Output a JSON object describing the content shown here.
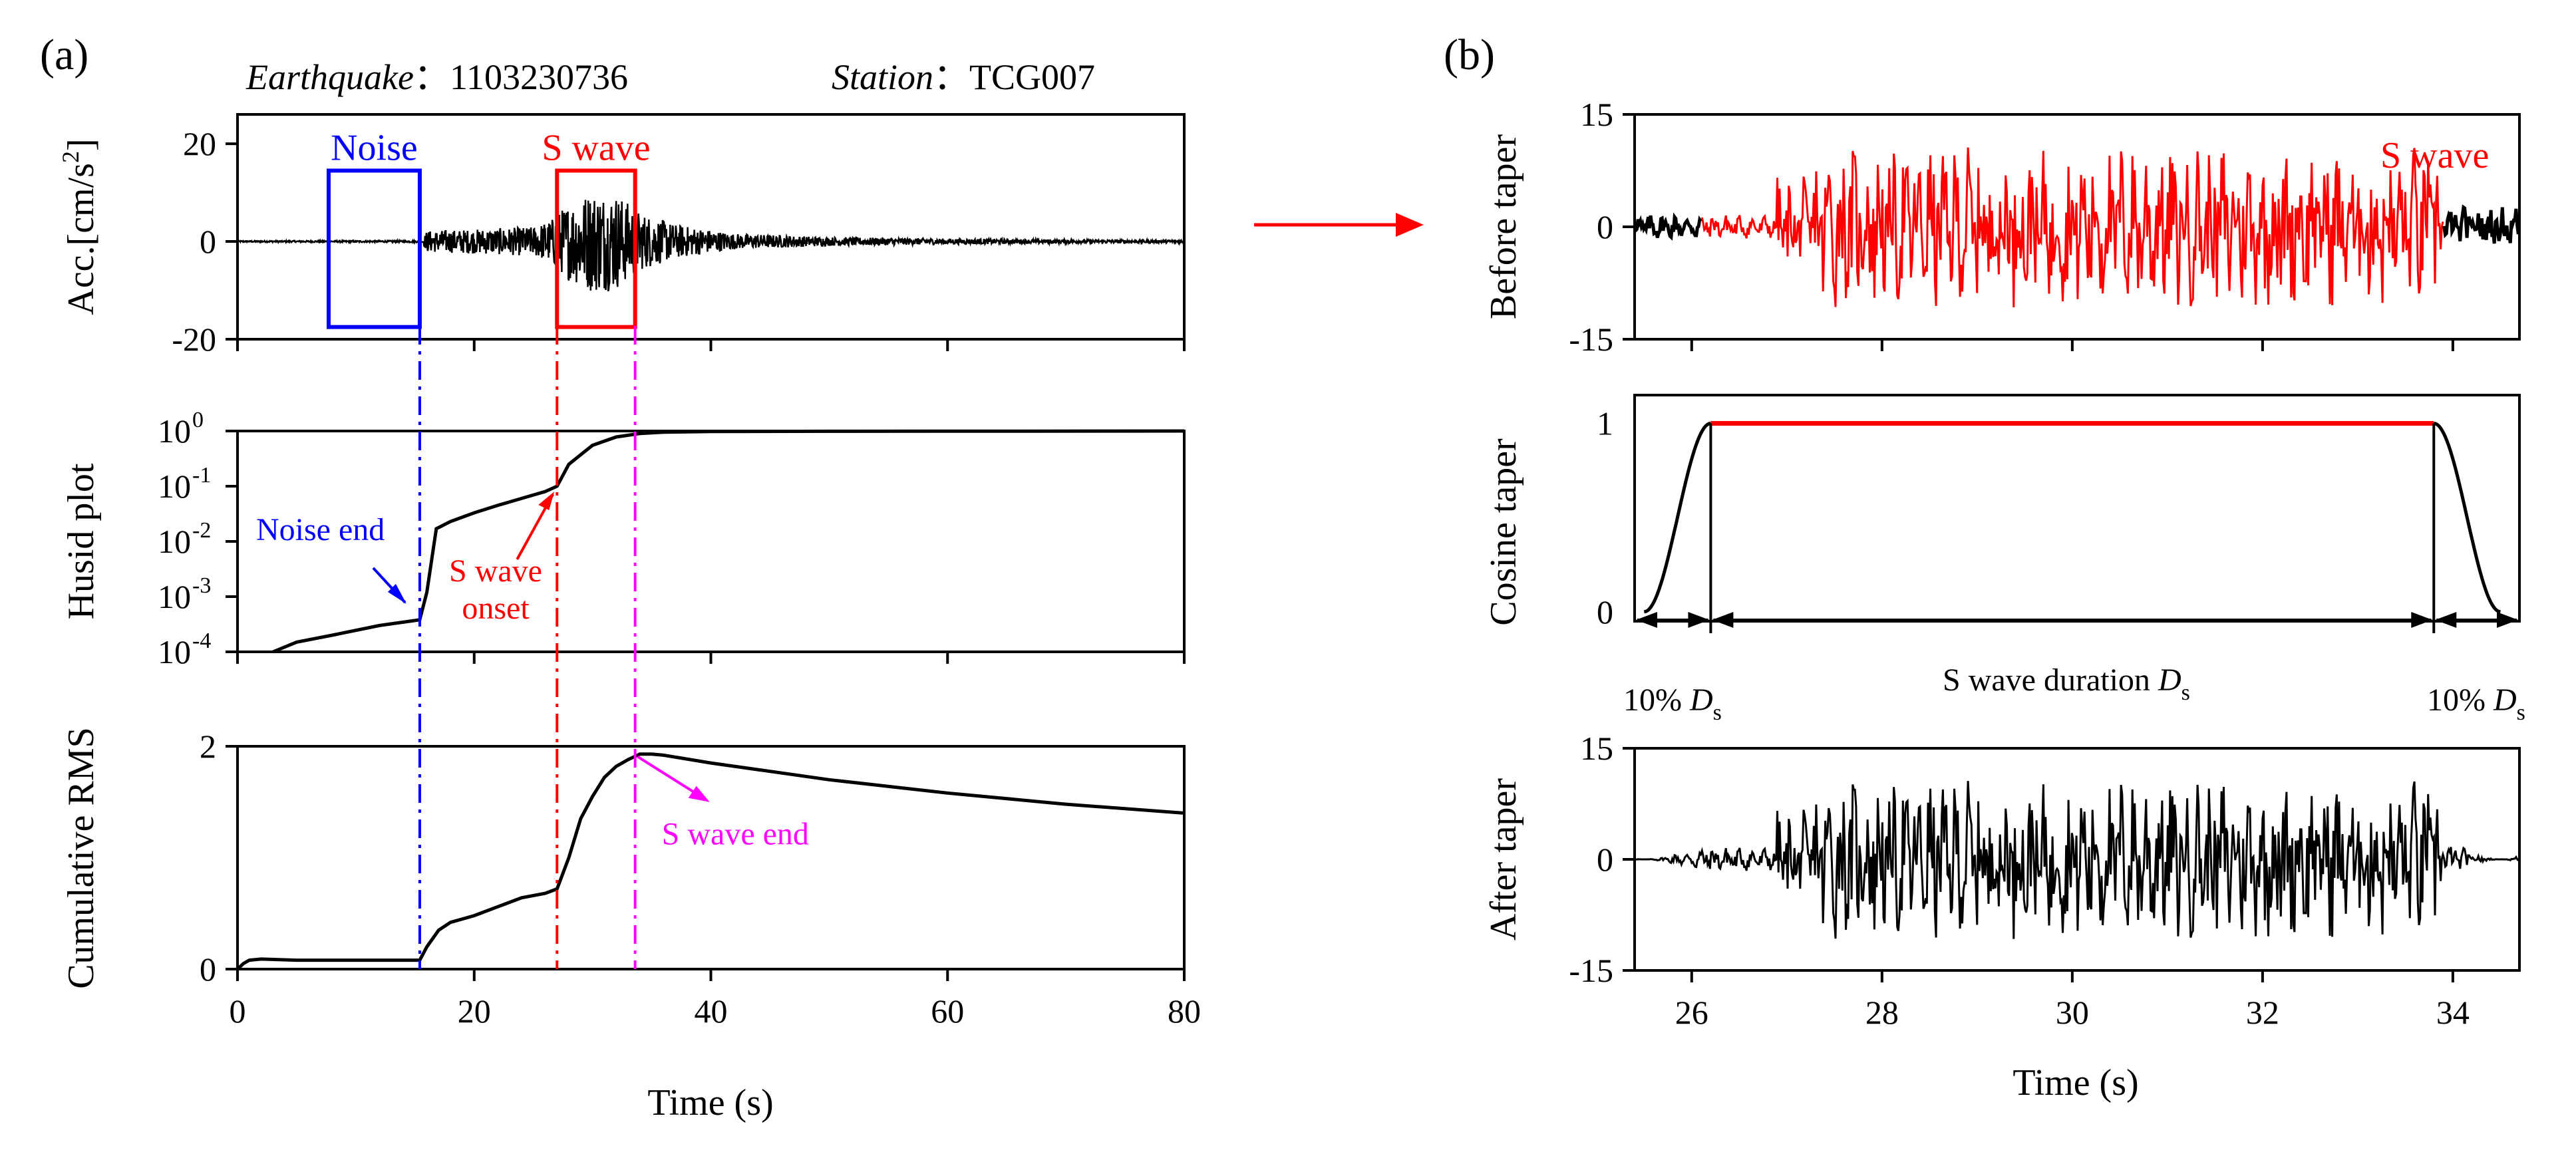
{
  "figure": {
    "panel_a_label": "(a)",
    "panel_b_label": "(b)",
    "earthquake_label": "Earthquake",
    "earthquake_id": "1103230736",
    "station_label": "Station",
    "station_id": "TCG007",
    "header_sep": "："
  },
  "colors": {
    "noise": "#0000ff",
    "swave": "#ff0000",
    "swave_end": "#ff00ff",
    "trace": "#000000"
  },
  "chart_data": [
    {
      "id": "acc",
      "type": "line",
      "panel": "(a)",
      "ylabel": "Acc.[cm/s²]",
      "ylabel_parts": [
        "Acc.[cm/s",
        "2",
        "]"
      ],
      "xlim": [
        0,
        80
      ],
      "ylim": [
        -20,
        26
      ],
      "yticks": [
        -20,
        0,
        20
      ],
      "ytick_labels": [
        "-20",
        "0",
        "20"
      ],
      "series": [
        {
          "color": "#000000",
          "envelope": {
            "t": [
              0,
              15.6,
              16,
              20,
              25,
              26.5,
              28,
              30,
              32,
              34,
              37,
              42,
              50,
              60,
              70,
              80
            ],
            "amp": [
              0.15,
              0.2,
              2.2,
              2.5,
              3.0,
              4.5,
              8.0,
              10.5,
              10.0,
              6.0,
              3.5,
              1.6,
              0.9,
              0.6,
              0.4,
              0.3
            ]
          }
        }
      ],
      "annotations": [
        {
          "text": "Noise",
          "color": "#0000ff",
          "box": {
            "x0": 7.7,
            "x1": 15.4,
            "y0": -17.5,
            "y1": 14.5
          }
        },
        {
          "text": "S wave",
          "color": "#ff0000",
          "box": {
            "x0": 27,
            "x1": 33.6,
            "y0": -17.5,
            "y1": 14.5
          }
        }
      ]
    },
    {
      "id": "husid",
      "type": "line",
      "panel": "(a)",
      "ylabel": "Husid plot",
      "yscale": "log",
      "xlim": [
        0,
        80
      ],
      "ylim": [
        0.0001,
        1
      ],
      "ytick_labels": [
        {
          "base": "10",
          "exp": "0",
          "value": 1
        },
        {
          "base": "10",
          "exp": "-1",
          "value": 0.1
        },
        {
          "base": "10",
          "exp": "-2",
          "value": 0.01
        },
        {
          "base": "10",
          "exp": "-3",
          "value": 0.001
        },
        {
          "base": "10",
          "exp": "-4",
          "value": 0.0001
        }
      ],
      "series": [
        {
          "color": "#000000",
          "x": [
            3,
            5,
            8,
            12,
            15.4,
            16,
            16.8,
            18,
            20,
            22,
            24,
            26,
            27,
            28,
            30,
            32,
            34,
            36,
            40,
            50,
            80
          ],
          "y": [
            0.0001,
            0.00015,
            0.0002,
            0.0003,
            0.00038,
            0.0012,
            0.017,
            0.023,
            0.033,
            0.045,
            0.06,
            0.08,
            0.1,
            0.25,
            0.55,
            0.78,
            0.9,
            0.95,
            0.98,
            0.99,
            1.0
          ]
        }
      ],
      "annotations": [
        {
          "text": "Noise end",
          "color": "#0000ff",
          "at": {
            "x": 15.4,
            "y": 0.00038
          }
        },
        {
          "text": "S wave",
          "text2": "onset",
          "color": "#ff0000",
          "at": {
            "x": 27,
            "y": 0.1
          }
        }
      ]
    },
    {
      "id": "rms",
      "type": "line",
      "panel": "(a)",
      "ylabel": "Cumulative RMS",
      "xlabel": "Time (s)",
      "xlim": [
        0,
        80
      ],
      "ylim": [
        0,
        2
      ],
      "yticks": [
        0,
        2
      ],
      "ytick_labels": [
        "0",
        "2"
      ],
      "xticks": [
        0,
        20,
        40,
        60,
        80
      ],
      "xtick_labels": [
        "0",
        "20",
        "40",
        "60",
        "80"
      ],
      "series": [
        {
          "color": "#000000",
          "x": [
            0,
            0.5,
            1,
            2,
            5,
            10,
            15.4,
            16,
            17,
            18,
            20,
            22,
            24,
            26,
            27,
            28,
            29,
            30,
            31,
            32,
            33,
            34,
            35,
            36,
            40,
            50,
            60,
            70,
            80
          ],
          "y": [
            0,
            0.05,
            0.08,
            0.09,
            0.08,
            0.08,
            0.08,
            0.2,
            0.35,
            0.42,
            0.48,
            0.56,
            0.64,
            0.68,
            0.72,
            1.0,
            1.35,
            1.55,
            1.72,
            1.82,
            1.88,
            1.93,
            1.93,
            1.92,
            1.85,
            1.7,
            1.58,
            1.48,
            1.4
          ]
        }
      ],
      "annotations": [
        {
          "text": "S wave end",
          "color": "#ff00ff",
          "at": {
            "x": 33.6,
            "y": 1.93
          }
        }
      ]
    },
    {
      "id": "before-taper",
      "type": "line",
      "panel": "(b)",
      "ylabel": "Before taper",
      "xlim": [
        25.4,
        34.7
      ],
      "ylim": [
        -15,
        15
      ],
      "yticks": [
        -15,
        0,
        15
      ],
      "ytick_labels": [
        "-15",
        "0",
        "15"
      ],
      "series": [
        {
          "name": "S wave",
          "color": "#ff0000",
          "x_range": [
            26.1,
            33.9
          ]
        },
        {
          "color": "#000000",
          "x_range": [
            25.4,
            26.1
          ]
        },
        {
          "color": "#000000",
          "x_range": [
            33.9,
            34.7
          ]
        }
      ],
      "annotations": [
        {
          "text": "S wave",
          "color": "#ff0000"
        }
      ]
    },
    {
      "id": "cosine-taper",
      "type": "line",
      "panel": "(b)",
      "ylabel": "Cosine taper",
      "xlim": [
        25.4,
        34.7
      ],
      "ylim": [
        0,
        1
      ],
      "yticks": [
        0,
        1
      ],
      "ytick_labels": [
        "0",
        "1"
      ],
      "series": [
        {
          "color": "#000000",
          "x": [
            25.5,
            26.2
          ],
          "shape": "rising-cosine"
        },
        {
          "color": "#ff0000",
          "x": [
            26.2,
            33.8
          ],
          "y": [
            1,
            1
          ]
        },
        {
          "color": "#000000",
          "x": [
            33.8,
            34.5
          ],
          "shape": "falling-cosine"
        }
      ],
      "annotations": [
        {
          "text": "10% ",
          "italic": "D",
          "sub": "s",
          "position": "left"
        },
        {
          "text": "S wave duration ",
          "italic": "D",
          "sub": "s",
          "position": "center"
        },
        {
          "text": "10% ",
          "italic": "D",
          "sub": "s",
          "position": "right"
        }
      ]
    },
    {
      "id": "after-taper",
      "type": "line",
      "panel": "(b)",
      "ylabel": "After taper",
      "xlabel": "Time (s)",
      "xlim": [
        25.4,
        34.7
      ],
      "ylim": [
        -15,
        15
      ],
      "yticks": [
        -15,
        0,
        15
      ],
      "ytick_labels": [
        "-15",
        "0",
        "15"
      ],
      "xticks": [
        26,
        28,
        30,
        32,
        34
      ],
      "xtick_labels": [
        "26",
        "28",
        "30",
        "32",
        "34"
      ],
      "series": [
        {
          "color": "#000000",
          "x_range": [
            25.4,
            34.7
          ]
        }
      ]
    }
  ]
}
